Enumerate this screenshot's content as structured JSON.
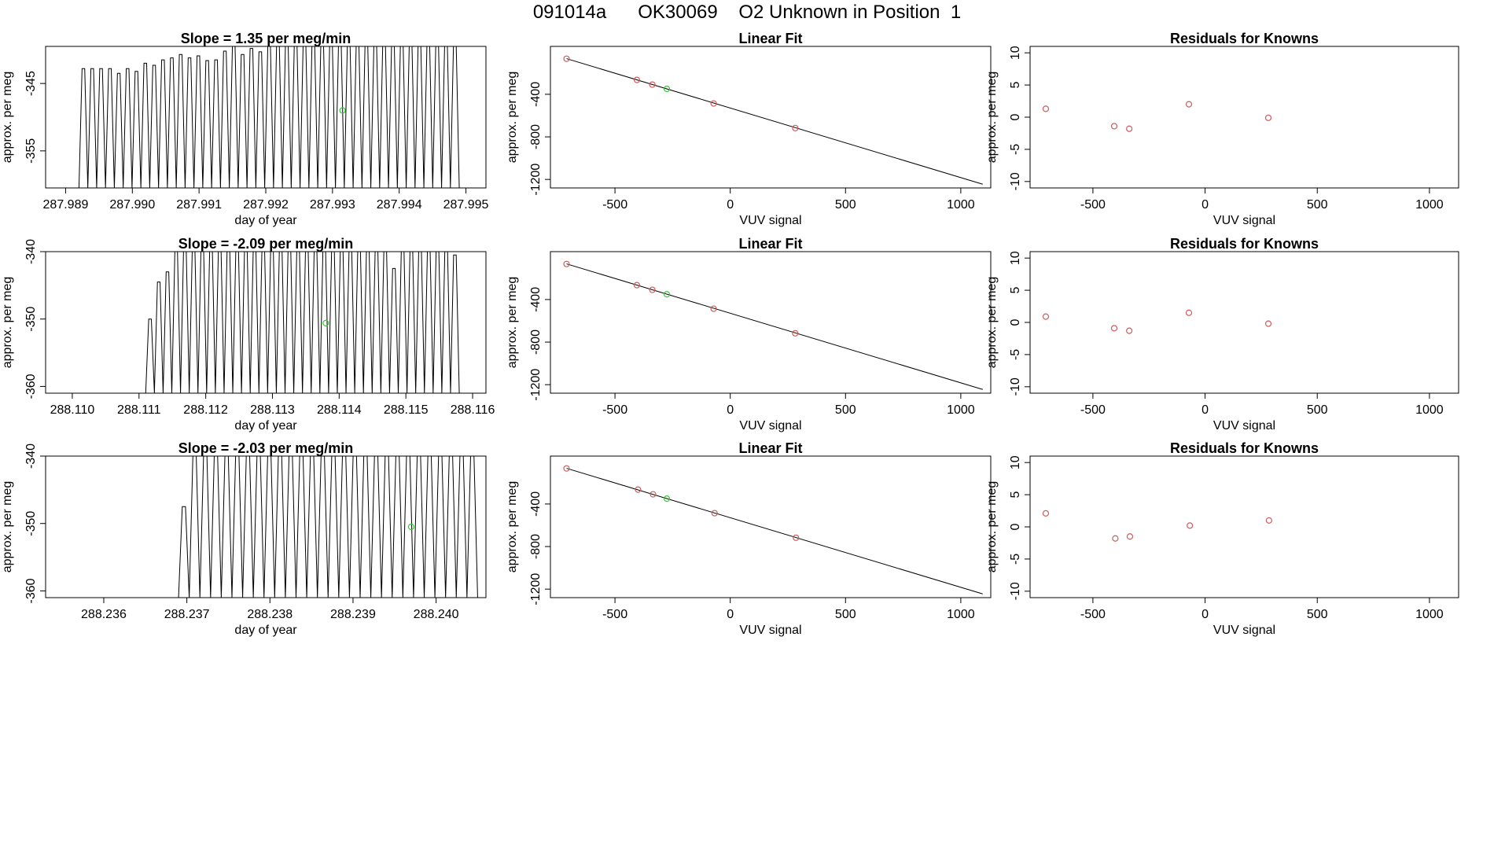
{
  "page_title": "091014a      OK30069    O2 Unknown in Position  1",
  "colors": {
    "trace": "#000000",
    "known_point": "#cd5c5c",
    "unknown_point": "#32cd32",
    "axis": "#000000"
  },
  "chart_data": [
    {
      "id": "r1-trace",
      "type": "line",
      "title": "Slope =  1.35  per meg/min",
      "xlabel": "day of year",
      "ylabel": "approx. per meg",
      "xlim": [
        287.9887,
        287.9953
      ],
      "ylim": [
        -360.5,
        -339.5
      ],
      "xticks": [
        287.989,
        287.99,
        287.991,
        287.992,
        287.993,
        287.994,
        287.995
      ],
      "xtick_labels": [
        "287.989",
        "287.990",
        "287.991",
        "287.992",
        "287.993",
        "287.994",
        "287.995"
      ],
      "yticks": [
        -345,
        -355
      ],
      "ytick_labels": [
        "-345",
        "-355"
      ],
      "trace": {
        "start": 287.9892,
        "end": 287.9949,
        "base": -360.5,
        "peaks": [
          -342.8,
          -342.8,
          -342.8,
          -342.8,
          -343.5,
          -342.8,
          -343.2,
          -342.0,
          -342.3,
          -341.5,
          -341.2,
          -340.7,
          -341.2,
          -340.9,
          -341.6,
          -341.5,
          -340.2,
          -339.5,
          -340.7,
          -339.8,
          -340.3,
          -339.5,
          -339.0,
          -339.0,
          -339.0,
          -339.0,
          -339.0,
          -339.0,
          -339.0,
          -339.0,
          -339.0,
          -339.0,
          -339.0,
          -339.0,
          -339.0,
          -339.0,
          -339.0,
          -339.0,
          -339.0,
          -339.0,
          -339.0,
          -339.0,
          -339.0
        ]
      },
      "unknown_point": {
        "x": 287.99315,
        "y": -349.0
      }
    },
    {
      "id": "r1-fit",
      "type": "scatter",
      "title": "Linear Fit",
      "xlabel": "VUV signal",
      "ylabel": "approx. per meg",
      "xlim": [
        -780,
        1130
      ],
      "ylim": [
        -1280,
        50
      ],
      "xticks": [
        -500,
        0,
        500,
        1000
      ],
      "xtick_labels": [
        "-500",
        "0",
        "500",
        "1000"
      ],
      "yticks": [
        -400,
        -800,
        -1200
      ],
      "ytick_labels": [
        "-400",
        "-800",
        "-1200"
      ],
      "fit_line": [
        [
          -710,
          -65
        ],
        [
          1095,
          -1245
        ]
      ],
      "known_points": [
        [
          -710,
          -66
        ],
        [
          -405,
          -265
        ],
        [
          -338,
          -309
        ],
        [
          -72,
          -486
        ],
        [
          282,
          -717
        ]
      ],
      "unknown_points": [
        [
          -275,
          -349
        ]
      ]
    },
    {
      "id": "r1-resid",
      "type": "scatter",
      "title": "Residuals for Knowns",
      "xlabel": "VUV signal",
      "ylabel": "approx. per meg",
      "xlim": [
        -780,
        1130
      ],
      "ylim": [
        -11,
        11
      ],
      "xticks": [
        -500,
        0,
        500,
        1000
      ],
      "xtick_labels": [
        "-500",
        "0",
        "500",
        "1000"
      ],
      "yticks": [
        10,
        5,
        0,
        -5,
        -10
      ],
      "ytick_labels": [
        "10",
        "5",
        "0",
        "-5",
        "-10"
      ],
      "known_points": [
        [
          -710,
          1.3
        ],
        [
          -405,
          -1.4
        ],
        [
          -338,
          -1.8
        ],
        [
          -72,
          2.0
        ],
        [
          282,
          -0.1
        ]
      ],
      "unknown_points": []
    },
    {
      "id": "r2-trace",
      "type": "line",
      "title": "Slope =  -2.09  per meg/min",
      "xlabel": "day of year",
      "ylabel": "approx. per meg",
      "xlim": [
        288.1096,
        288.1162
      ],
      "ylim": [
        -361,
        -340
      ],
      "xticks": [
        288.11,
        288.111,
        288.112,
        288.113,
        288.114,
        288.115,
        288.116
      ],
      "xtick_labels": [
        "288.110",
        "288.111",
        "288.112",
        "288.113",
        "288.114",
        "288.115",
        "288.116"
      ],
      "yticks": [
        -340,
        -350,
        -360
      ],
      "ytick_labels": [
        "-340",
        "-350",
        "-360"
      ],
      "trace": {
        "start": 288.1111,
        "end": 288.1158,
        "base": -361,
        "pre_start": 288.1096,
        "peaks": [
          -350.0,
          -344.5,
          -343.0,
          -340.0,
          -339.5,
          -339.5,
          -339.5,
          -339.5,
          -339.5,
          -339.5,
          -339.5,
          -339.5,
          -339.5,
          -339.5,
          -339.5,
          -339.5,
          -339.5,
          -339.5,
          -339.5,
          -339.5,
          -339.5,
          -339.5,
          -339.5,
          -339.5,
          -339.5,
          -339.5,
          -339.5,
          -339.5,
          -342.5,
          -339.5,
          -339.5,
          -339.5,
          -339.5,
          -339.5,
          -339.5,
          -340.5
        ]
      },
      "unknown_point": {
        "x": 288.1138,
        "y": -350.6
      }
    },
    {
      "id": "r2-fit",
      "type": "scatter",
      "title": "Linear Fit",
      "xlabel": "VUV signal",
      "ylabel": "approx. per meg",
      "xlim": [
        -780,
        1130
      ],
      "ylim": [
        -1280,
        50
      ],
      "xticks": [
        -500,
        0,
        500,
        1000
      ],
      "xtick_labels": [
        "-500",
        "0",
        "500",
        "1000"
      ],
      "yticks": [
        -400,
        -800,
        -1200
      ],
      "ytick_labels": [
        "-400",
        "-800",
        "-1200"
      ],
      "fit_line": [
        [
          -710,
          -65
        ],
        [
          1095,
          -1245
        ]
      ],
      "known_points": [
        [
          -710,
          -66
        ],
        [
          -405,
          -265
        ],
        [
          -338,
          -309
        ],
        [
          -72,
          -486
        ],
        [
          282,
          -717
        ]
      ],
      "unknown_points": [
        [
          -275,
          -351
        ]
      ]
    },
    {
      "id": "r2-resid",
      "type": "scatter",
      "title": "Residuals for Knowns",
      "xlabel": "VUV signal",
      "ylabel": "approx. per meg",
      "xlim": [
        -780,
        1130
      ],
      "ylim": [
        -11,
        11
      ],
      "xticks": [
        -500,
        0,
        500,
        1000
      ],
      "xtick_labels": [
        "-500",
        "0",
        "500",
        "1000"
      ],
      "yticks": [
        10,
        5,
        0,
        -5,
        -10
      ],
      "ytick_labels": [
        "10",
        "5",
        "0",
        "-5",
        "-10"
      ],
      "known_points": [
        [
          -710,
          0.9
        ],
        [
          -405,
          -0.9
        ],
        [
          -338,
          -1.3
        ],
        [
          -72,
          1.5
        ],
        [
          282,
          -0.2
        ]
      ],
      "unknown_points": []
    },
    {
      "id": "r3-trace",
      "type": "line",
      "title": "Slope =  -2.03  per meg/min",
      "xlabel": "day of year",
      "ylabel": "approx. per meg",
      "xlim": [
        288.2353,
        288.2406
      ],
      "ylim": [
        -361,
        -340
      ],
      "xticks": [
        288.236,
        288.237,
        288.238,
        288.239,
        288.24
      ],
      "xtick_labels": [
        "288.236",
        "288.237",
        "288.238",
        "288.239",
        "288.240"
      ],
      "yticks": [
        -340,
        -350,
        -360
      ],
      "ytick_labels": [
        "-340",
        "-350",
        "-360"
      ],
      "trace": {
        "start": 288.2369,
        "end": 288.2405,
        "base": -361,
        "pre_start": 288.2355,
        "peaks": [
          -347.5,
          -339.5,
          -339.5,
          -339.5,
          -339.5,
          -339.5,
          -339.5,
          -339.5,
          -339.5,
          -339.5,
          -339.5,
          -339.5,
          -339.5,
          -339.5,
          -339.5,
          -339.5,
          -339.5,
          -339.5,
          -339.5,
          -339.5,
          -339.5,
          -339.5,
          -339.5,
          -339.5,
          -339.5,
          -339.5,
          -339.5,
          -339.5
        ]
      },
      "unknown_point": {
        "x": 288.2397,
        "y": -350.5
      }
    },
    {
      "id": "r3-fit",
      "type": "scatter",
      "title": "Linear Fit",
      "xlabel": "VUV signal",
      "ylabel": "approx. per meg",
      "xlim": [
        -780,
        1130
      ],
      "ylim": [
        -1280,
        50
      ],
      "xticks": [
        -500,
        0,
        500,
        1000
      ],
      "xtick_labels": [
        "-500",
        "0",
        "500",
        "1000"
      ],
      "yticks": [
        -400,
        -800,
        -1200
      ],
      "ytick_labels": [
        "-400",
        "-800",
        "-1200"
      ],
      "fit_line": [
        [
          -710,
          -65
        ],
        [
          1095,
          -1245
        ]
      ],
      "known_points": [
        [
          -710,
          -66
        ],
        [
          -400,
          -265
        ],
        [
          -335,
          -309
        ],
        [
          -68,
          -486
        ],
        [
          285,
          -717
        ]
      ],
      "unknown_points": [
        [
          -275,
          -350
        ]
      ]
    },
    {
      "id": "r3-resid",
      "type": "scatter",
      "title": "Residuals for Knowns",
      "xlabel": "VUV signal",
      "ylabel": "approx. per meg",
      "xlim": [
        -780,
        1130
      ],
      "ylim": [
        -11,
        11
      ],
      "xticks": [
        -500,
        0,
        500,
        1000
      ],
      "xtick_labels": [
        "-500",
        "0",
        "500",
        "1000"
      ],
      "yticks": [
        10,
        5,
        0,
        -5,
        -10
      ],
      "ytick_labels": [
        "10",
        "5",
        "0",
        "-5",
        "-10"
      ],
      "known_points": [
        [
          -710,
          2.1
        ],
        [
          -400,
          -1.8
        ],
        [
          -335,
          -1.5
        ],
        [
          -68,
          0.2
        ],
        [
          285,
          1.0
        ]
      ],
      "unknown_points": []
    }
  ]
}
